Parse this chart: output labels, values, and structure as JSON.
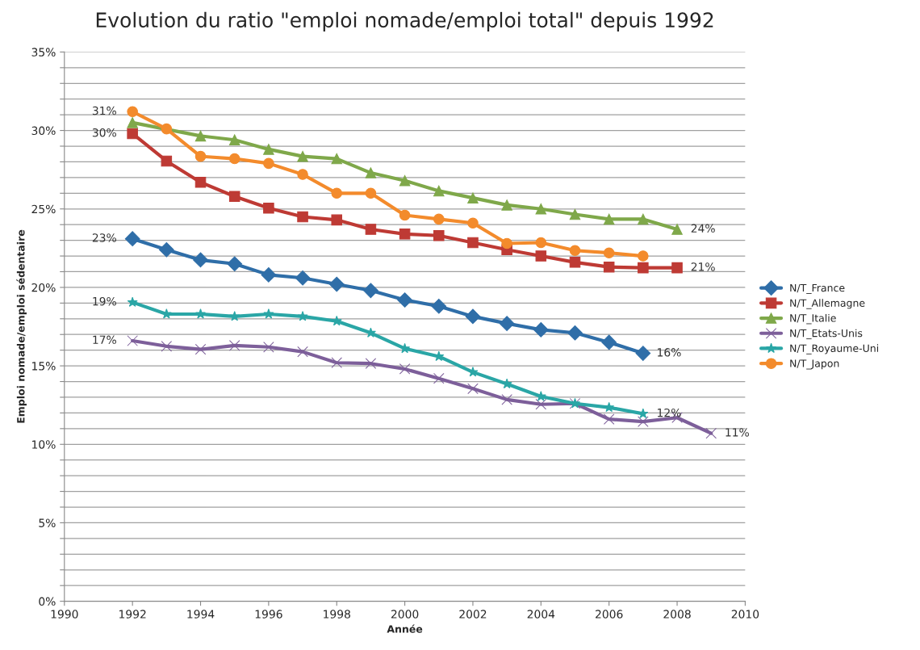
{
  "chart_data": {
    "type": "line",
    "title": "Evolution du ratio \"emploi nomade/emploi total\" depuis 1992",
    "xlabel": "Année",
    "ylabel": "Emploi nomade/emploi sédentaire",
    "xlim": [
      1990,
      2010
    ],
    "xticks": [
      1990,
      1992,
      1994,
      1996,
      1998,
      2000,
      2002,
      2004,
      2006,
      2008,
      2010
    ],
    "ylim": [
      0,
      35
    ],
    "yticks": [
      {
        "value": 0,
        "label": "0%"
      },
      {
        "value": 1,
        "label": null
      },
      {
        "value": 2,
        "label": null
      },
      {
        "value": 3,
        "label": null
      },
      {
        "value": 4,
        "label": null
      },
      {
        "value": 5,
        "label": "5%"
      },
      {
        "value": 6,
        "label": null
      },
      {
        "value": 7,
        "label": null
      },
      {
        "value": 8,
        "label": null
      },
      {
        "value": 9,
        "label": null
      },
      {
        "value": 10,
        "label": "10%"
      },
      {
        "value": 11,
        "label": null
      },
      {
        "value": 12,
        "label": null
      },
      {
        "value": 13,
        "label": null
      },
      {
        "value": 14,
        "label": null
      },
      {
        "value": 15,
        "label": "15%"
      },
      {
        "value": 16,
        "label": null
      },
      {
        "value": 17,
        "label": null
      },
      {
        "value": 18,
        "label": null
      },
      {
        "value": 19,
        "label": null
      },
      {
        "value": 20,
        "label": "20%"
      },
      {
        "value": 21,
        "label": null
      },
      {
        "value": 22,
        "label": null
      },
      {
        "value": 23,
        "label": null
      },
      {
        "value": 24,
        "label": null
      },
      {
        "value": 25,
        "label": "25%"
      },
      {
        "value": 26,
        "label": null
      },
      {
        "value": 27,
        "label": null
      },
      {
        "value": 28,
        "label": null
      },
      {
        "value": 29,
        "label": null
      },
      {
        "value": 30,
        "label": "30%"
      },
      {
        "value": 31,
        "label": null
      },
      {
        "value": 32,
        "label": null
      },
      {
        "value": 33,
        "label": null
      },
      {
        "value": 34,
        "label": null
      },
      {
        "value": 35,
        "label": "35%"
      }
    ],
    "grid": "y",
    "legend": "right",
    "x": [
      1992,
      1993,
      1994,
      1995,
      1996,
      1997,
      1998,
      1999,
      2000,
      2001,
      2002,
      2003,
      2004,
      2005,
      2006,
      2007,
      2008,
      2009
    ],
    "series": [
      {
        "name": "N/T_France",
        "color": "#2f6ea8",
        "marker": "diamond",
        "values": [
          23.1,
          22.4,
          21.75,
          21.5,
          20.8,
          20.6,
          20.2,
          19.8,
          19.2,
          18.8,
          18.15,
          17.7,
          17.3,
          17.1,
          16.5,
          15.8,
          null,
          null
        ]
      },
      {
        "name": "N/T_Allemagne",
        "color": "#be3a34",
        "marker": "square",
        "values": [
          29.8,
          28.05,
          26.7,
          25.8,
          25.05,
          24.5,
          24.3,
          23.7,
          23.4,
          23.3,
          22.85,
          22.4,
          22.0,
          21.6,
          21.3,
          21.25,
          21.25,
          null
        ]
      },
      {
        "name": "N/T_Italie",
        "color": "#7fa84a",
        "marker": "triangle",
        "values": [
          30.5,
          null,
          29.65,
          29.4,
          28.8,
          28.35,
          28.2,
          27.3,
          26.8,
          26.15,
          25.7,
          25.25,
          25.0,
          24.65,
          24.35,
          24.35,
          23.7,
          null
        ]
      },
      {
        "name": "N/T_Etats-Unis",
        "color": "#7d5f9a",
        "marker": "cross",
        "values": [
          16.6,
          16.25,
          16.05,
          16.3,
          16.2,
          15.9,
          15.2,
          15.15,
          14.8,
          14.2,
          13.55,
          12.85,
          12.55,
          12.6,
          11.6,
          11.45,
          11.7,
          10.7
        ]
      },
      {
        "name": "N/T_Royaume-Uni",
        "color": "#2aa6a6",
        "marker": "star",
        "values": [
          19.05,
          18.3,
          18.3,
          18.15,
          18.3,
          18.15,
          17.85,
          17.1,
          16.1,
          15.6,
          14.6,
          13.85,
          13.05,
          12.6,
          12.35,
          11.95,
          null,
          null
        ]
      },
      {
        "name": "N/T_Japon",
        "color": "#f38b2c",
        "marker": "circle",
        "values": [
          31.2,
          30.1,
          28.35,
          28.2,
          27.9,
          27.2,
          26.0,
          26.0,
          24.6,
          24.35,
          24.1,
          22.8,
          22.85,
          22.35,
          22.2,
          22.0,
          null,
          null
        ]
      }
    ],
    "annotations": [
      {
        "text": "31%",
        "x": 1992,
        "y": 31.2
      },
      {
        "text": "30%",
        "x": 1992,
        "y": 29.8
      },
      {
        "text": "23%",
        "x": 1992,
        "y": 23.1
      },
      {
        "text": "19%",
        "x": 1992,
        "y": 19.05
      },
      {
        "text": "17%",
        "x": 1992,
        "y": 16.6
      },
      {
        "text": "24%",
        "x": 2008,
        "y": 23.7
      },
      {
        "text": "21%",
        "x": 2008,
        "y": 21.25
      },
      {
        "text": "16%",
        "x": 2007,
        "y": 15.8
      },
      {
        "text": "12%",
        "x": 2007,
        "y": 11.95
      },
      {
        "text": "11%",
        "x": 2009,
        "y": 10.7
      }
    ]
  }
}
